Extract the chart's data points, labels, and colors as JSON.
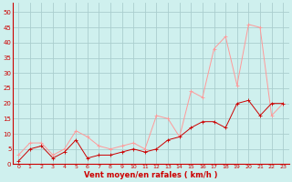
{
  "x": [
    0,
    1,
    2,
    3,
    4,
    5,
    6,
    7,
    8,
    9,
    10,
    11,
    12,
    13,
    14,
    15,
    16,
    17,
    18,
    19,
    20,
    21,
    22,
    23
  ],
  "y_rafales": [
    3,
    7,
    7,
    3,
    5,
    11,
    9,
    6,
    5,
    6,
    7,
    5,
    16,
    15,
    9,
    24,
    22,
    38,
    42,
    26,
    46,
    45,
    16,
    20
  ],
  "y_moyen": [
    1,
    5,
    6,
    2,
    4,
    8,
    2,
    3,
    3,
    4,
    5,
    4,
    5,
    8,
    9,
    12,
    14,
    14,
    12,
    20,
    21,
    16,
    20,
    20
  ],
  "background_color": "#cff0ee",
  "grid_color": "#aacece",
  "line_color_rafales": "#ff9999",
  "line_color_moyen": "#cc0000",
  "xlabel": "Vent moyen/en rafales ( km/h )",
  "yticks": [
    0,
    5,
    10,
    15,
    20,
    25,
    30,
    35,
    40,
    45,
    50
  ],
  "ylim": [
    0,
    53
  ],
  "xlim": [
    -0.5,
    23.5
  ],
  "xlabel_color": "#cc0000",
  "tick_color": "#cc0000",
  "spine_color": "#cc0000",
  "xlabel_fontsize": 6.0,
  "ytick_fontsize": 5.0,
  "xtick_fontsize": 4.5
}
